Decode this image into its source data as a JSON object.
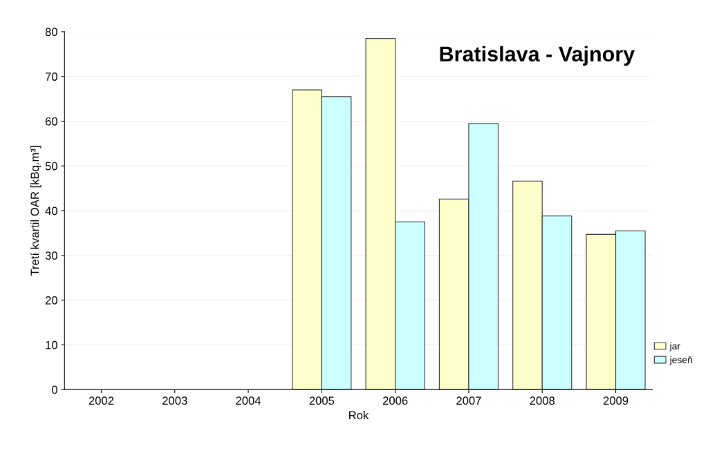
{
  "chart_data": {
    "type": "bar",
    "title": "Bratislava - Vajnory",
    "xlabel": "Rok",
    "ylabel": "Tretí kvartil OAR [kBq.m³]",
    "categories": [
      "2002",
      "2003",
      "2004",
      "2005",
      "2006",
      "2007",
      "2008",
      "2009"
    ],
    "series": [
      {
        "name": "jar",
        "color": "#ffffcc",
        "values": [
          null,
          null,
          null,
          67,
          78.5,
          42.6,
          46.6,
          34.7
        ]
      },
      {
        "name": "jeseň",
        "color": "#ccffff",
        "values": [
          null,
          null,
          null,
          65.5,
          37.5,
          59.5,
          38.8,
          35.5
        ]
      }
    ],
    "ylim": [
      0,
      80
    ],
    "yticks": [
      0,
      10,
      20,
      30,
      40,
      50,
      60,
      70,
      80
    ],
    "grid": "y",
    "legend": "right"
  }
}
